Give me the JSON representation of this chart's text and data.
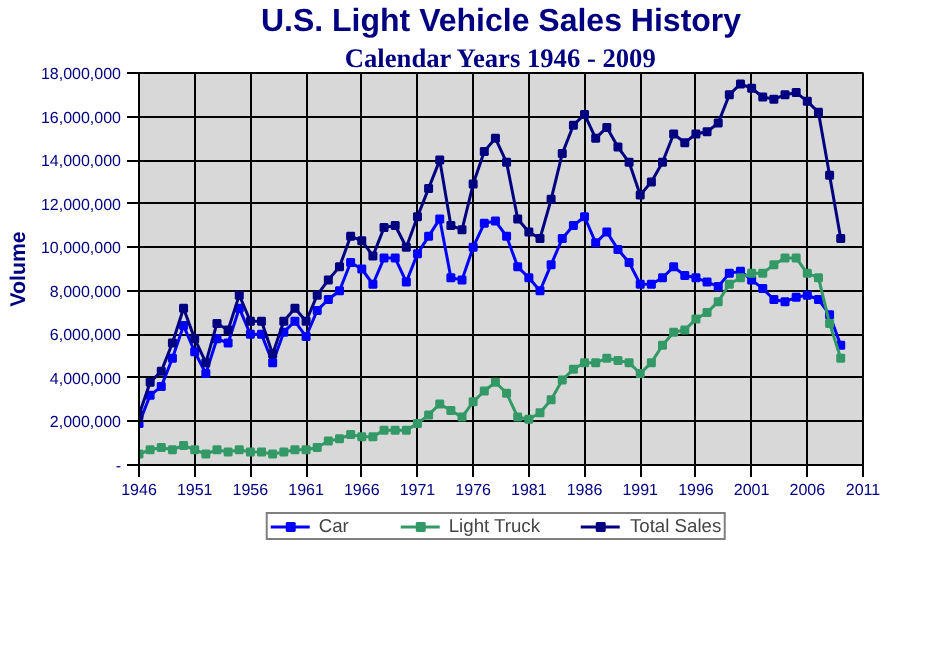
{
  "chart_data": {
    "type": "line",
    "title": "U.S. Light Vehicle Sales History",
    "subtitle": "Calendar Years 1946 - 2009",
    "ylabel": "Volume",
    "x": [
      1946,
      1947,
      1948,
      1949,
      1950,
      1951,
      1952,
      1953,
      1954,
      1955,
      1956,
      1957,
      1958,
      1959,
      1960,
      1961,
      1962,
      1963,
      1964,
      1965,
      1966,
      1967,
      1968,
      1969,
      1970,
      1971,
      1972,
      1973,
      1974,
      1975,
      1976,
      1977,
      1978,
      1979,
      1980,
      1981,
      1982,
      1983,
      1984,
      1985,
      1986,
      1987,
      1988,
      1989,
      1990,
      1991,
      1992,
      1993,
      1994,
      1995,
      1996,
      1997,
      1998,
      1999,
      2000,
      2001,
      2002,
      2003,
      2004,
      2005,
      2006,
      2007,
      2008,
      2009
    ],
    "series": [
      {
        "name": "Car",
        "color": "#0000ff",
        "values": [
          1900000,
          3200000,
          3600000,
          4900000,
          6400000,
          5200000,
          4200000,
          5800000,
          5600000,
          7200000,
          6000000,
          6000000,
          4700000,
          6100000,
          6600000,
          5900000,
          7100000,
          7600000,
          8000000,
          9300000,
          9000000,
          8300000,
          9500000,
          9500000,
          8400000,
          9700000,
          10500000,
          11300000,
          8600000,
          8500000,
          10000000,
          11100000,
          11200000,
          10500000,
          9100000,
          8600000,
          8000000,
          9200000,
          10400000,
          11000000,
          11400000,
          10200000,
          10700000,
          9900000,
          9300000,
          8300000,
          8300000,
          8600000,
          9100000,
          8700000,
          8600000,
          8400000,
          8200000,
          8800000,
          8900000,
          8500000,
          8100000,
          7600000,
          7500000,
          7700000,
          7800000,
          7600000,
          6900000,
          5500000
        ]
      },
      {
        "name": "Light Truck",
        "color": "#339966",
        "values": [
          500000,
          700000,
          800000,
          700000,
          900000,
          700000,
          500000,
          700000,
          600000,
          700000,
          600000,
          600000,
          500000,
          600000,
          700000,
          700000,
          800000,
          1100000,
          1200000,
          1400000,
          1300000,
          1300000,
          1600000,
          1600000,
          1600000,
          1900000,
          2300000,
          2800000,
          2500000,
          2200000,
          2900000,
          3400000,
          3800000,
          3300000,
          2200000,
          2100000,
          2400000,
          3000000,
          3900000,
          4400000,
          4700000,
          4700000,
          4900000,
          4800000,
          4700000,
          4200000,
          4700000,
          5500000,
          6100000,
          6200000,
          6700000,
          7000000,
          7500000,
          8300000,
          8600000,
          8800000,
          8800000,
          9200000,
          9500000,
          9500000,
          8800000,
          8600000,
          6500000,
          4900000
        ]
      },
      {
        "name": "Total Sales",
        "color": "#000080",
        "values": [
          2300000,
          3800000,
          4300000,
          5600000,
          7200000,
          5800000,
          4700000,
          6500000,
          6200000,
          7800000,
          6600000,
          6600000,
          5100000,
          6600000,
          7200000,
          6600000,
          7800000,
          8500000,
          9100000,
          10500000,
          10300000,
          9600000,
          10900000,
          11000000,
          10000000,
          11400000,
          12700000,
          14000000,
          11000000,
          10800000,
          12900000,
          14400000,
          15000000,
          13900000,
          11300000,
          10700000,
          10400000,
          12200000,
          14300000,
          15600000,
          16100000,
          15000000,
          15500000,
          14600000,
          13900000,
          12400000,
          13000000,
          13900000,
          15200000,
          14800000,
          15200000,
          15300000,
          15700000,
          17000000,
          17500000,
          17300000,
          16900000,
          16800000,
          17000000,
          17100000,
          16700000,
          16200000,
          13300000,
          10400000
        ]
      }
    ],
    "xlim": [
      1946,
      2011
    ],
    "xticks": [
      1946,
      1951,
      1956,
      1961,
      1966,
      1971,
      1976,
      1981,
      1986,
      1991,
      1996,
      2001,
      2006,
      2011
    ],
    "ylim": [
      0,
      18000000
    ],
    "yticks": [
      {
        "value": 0,
        "label": "-"
      },
      {
        "value": 2000000,
        "label": "2,000,000"
      },
      {
        "value": 4000000,
        "label": "4,000,000"
      },
      {
        "value": 6000000,
        "label": "6,000,000"
      },
      {
        "value": 8000000,
        "label": "8,000,000"
      },
      {
        "value": 10000000,
        "label": "10,000,000"
      },
      {
        "value": 12000000,
        "label": "12,000,000"
      },
      {
        "value": 14000000,
        "label": "14,000,000"
      },
      {
        "value": 16000000,
        "label": "16,000,000"
      },
      {
        "value": 18000000,
        "label": "18,000,000"
      }
    ],
    "grid": true,
    "legend": "bottom",
    "marker": "square",
    "line_style": "solid"
  }
}
